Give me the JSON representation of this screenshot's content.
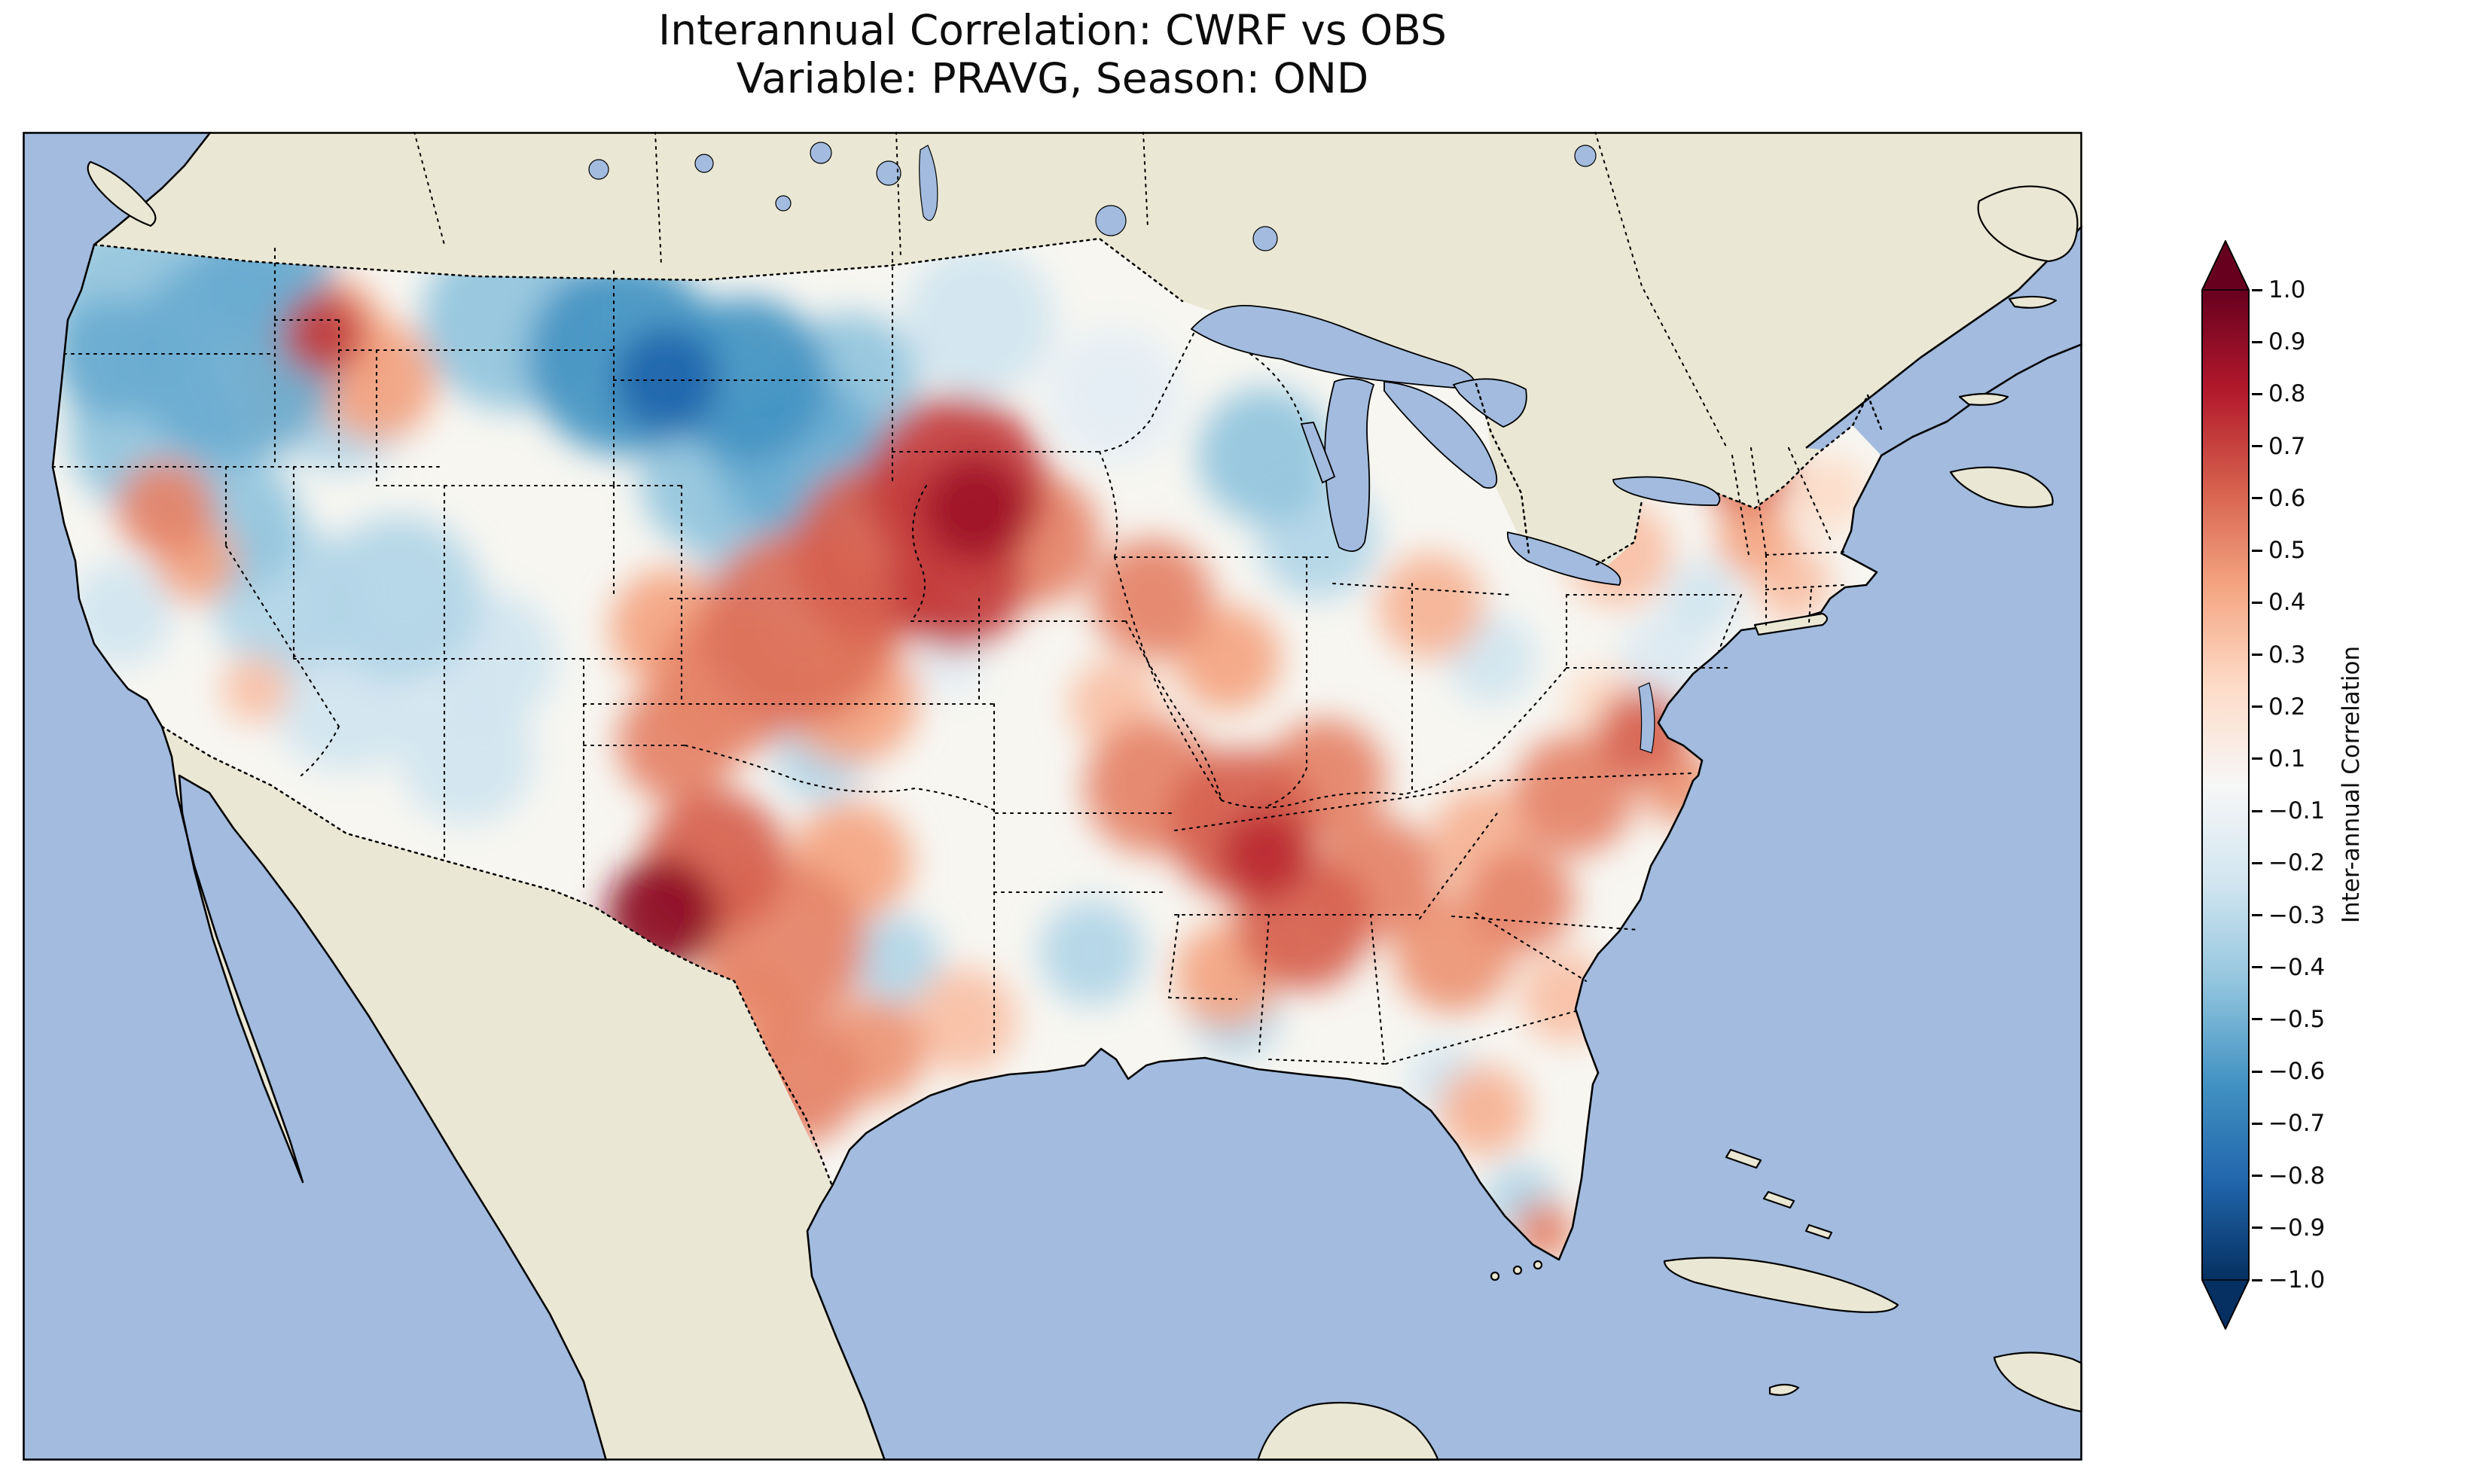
{
  "figure": {
    "title_line1": "Interannual Correlation: CWRF vs OBS",
    "title_line2": "Variable: PRAVG, Season: OND"
  },
  "colorbar": {
    "label": "Inter-annual Correlation",
    "ticks": [
      "1.0",
      "0.9",
      "0.8",
      "0.7",
      "0.6",
      "0.5",
      "0.4",
      "0.3",
      "0.2",
      "0.1",
      "−0.1",
      "−0.2",
      "−0.3",
      "−0.4",
      "−0.5",
      "−0.6",
      "−0.7",
      "−0.8",
      "−0.9",
      "−1.0"
    ],
    "extend_colors": {
      "over": "#67001f",
      "under": "#053061"
    }
  },
  "map": {
    "ocean_color": "#a2bbdf",
    "land_color": "#eae8d4",
    "field_base_color": "#f7f6f1",
    "coast_color": "#000000"
  },
  "chart_data": {
    "type": "heatmap",
    "title": "Interannual Correlation: CWRF vs OBS",
    "subtitle": "Variable: PRAVG, Season: OND",
    "variable": "PRAVG",
    "season": "OND",
    "datasets_compared": [
      "CWRF",
      "OBS"
    ],
    "region": "Contiguous United States",
    "colormap": "RdBu_r (red = positive correlation, blue = negative)",
    "value_range": [
      -1.0,
      1.0
    ],
    "level_step": 0.1,
    "colorbar_label": "Inter-annual Correlation",
    "colormap_anchors": [
      {
        "v": -1.0,
        "color": "#053061"
      },
      {
        "v": -0.8,
        "color": "#2166ac"
      },
      {
        "v": -0.6,
        "color": "#4393c3"
      },
      {
        "v": -0.4,
        "color": "#92c5de"
      },
      {
        "v": -0.2,
        "color": "#d1e5f0"
      },
      {
        "v": 0.0,
        "color": "#f7f7f7"
      },
      {
        "v": 0.2,
        "color": "#fddbc7"
      },
      {
        "v": 0.4,
        "color": "#f4a582"
      },
      {
        "v": 0.6,
        "color": "#d6604d"
      },
      {
        "v": 0.8,
        "color": "#b2182b"
      },
      {
        "v": 1.0,
        "color": "#67001f"
      }
    ],
    "regional_values": [
      {
        "region": "Pacific Northwest / northern Rockies",
        "correlation": -0.5
      },
      {
        "region": "Northern Plains (Montana–Dakotas)",
        "correlation": -0.7
      },
      {
        "region": "NW Wyoming",
        "correlation": 0.6
      },
      {
        "region": "Great Basin (Nevada–Utah)",
        "correlation": -0.3
      },
      {
        "region": "Eastern California / Sierra",
        "correlation": 0.4
      },
      {
        "region": "Central Plains (Kansas–Missouri–Iowa)",
        "correlation": 0.8
      },
      {
        "region": "Big Bend, West Texas",
        "correlation": 0.9
      },
      {
        "region": "Central and South Texas",
        "correlation": 0.5
      },
      {
        "region": "Mid-South (Arkansas–Tennessee–Alabama)",
        "correlation": 0.6
      },
      {
        "region": "Carolinas coast",
        "correlation": 0.6
      },
      {
        "region": "Upper Midwest (Wisconsin)",
        "correlation": -0.4
      },
      {
        "region": "Ohio Valley",
        "correlation": 0.4
      },
      {
        "region": "New England (Vermont–New Hampshire)",
        "correlation": 0.5
      },
      {
        "region": "Florida peninsula",
        "correlation": 0.3
      },
      {
        "region": "Gulf Coast (Louisiana–Mississippi)",
        "correlation": -0.3
      }
    ],
    "field_blobs_format": "x, y, radius, correlation value (map-local pixels)",
    "field_blobs": [
      [
        150,
        230,
        120,
        -0.4
      ],
      [
        280,
        300,
        140,
        -0.5
      ],
      [
        170,
        400,
        110,
        -0.4
      ],
      [
        320,
        180,
        90,
        -0.5
      ],
      [
        420,
        350,
        100,
        -0.3
      ],
      [
        120,
        300,
        80,
        -0.5
      ],
      [
        390,
        280,
        95,
        0.4
      ],
      [
        400,
        268,
        55,
        0.7
      ],
      [
        470,
        330,
        80,
        0.4
      ],
      [
        345,
        365,
        50,
        0.3
      ],
      [
        650,
        250,
        120,
        -0.4
      ],
      [
        800,
        300,
        130,
        -0.6
      ],
      [
        855,
        330,
        70,
        -0.8
      ],
      [
        960,
        330,
        110,
        -0.6
      ],
      [
        1030,
        430,
        110,
        -0.5
      ],
      [
        920,
        460,
        100,
        -0.4
      ],
      [
        1100,
        330,
        90,
        -0.4
      ],
      [
        990,
        550,
        95,
        -0.3
      ],
      [
        1270,
        250,
        100,
        -0.2
      ],
      [
        1650,
        430,
        90,
        -0.4
      ],
      [
        1720,
        540,
        80,
        -0.3
      ],
      [
        1450,
        350,
        90,
        -0.1
      ],
      [
        280,
        520,
        90,
        -0.4
      ],
      [
        350,
        620,
        100,
        -0.3
      ],
      [
        500,
        620,
        110,
        -0.3
      ],
      [
        430,
        750,
        100,
        -0.2
      ],
      [
        590,
        830,
        90,
        -0.2
      ],
      [
        620,
        700,
        90,
        -0.2
      ],
      [
        190,
        500,
        65,
        0.5
      ],
      [
        230,
        570,
        55,
        0.4
      ],
      [
        130,
        640,
        70,
        -0.2
      ],
      [
        310,
        740,
        45,
        0.3
      ],
      [
        1240,
        470,
        120,
        0.7
      ],
      [
        1265,
        500,
        70,
        0.85
      ],
      [
        1140,
        560,
        120,
        0.6
      ],
      [
        1030,
        660,
        130,
        0.55
      ],
      [
        940,
        730,
        100,
        0.5
      ],
      [
        1240,
        600,
        90,
        0.7
      ],
      [
        1340,
        540,
        90,
        0.5
      ],
      [
        860,
        660,
        80,
        0.4
      ],
      [
        1100,
        750,
        90,
        0.4
      ],
      [
        870,
        810,
        80,
        0.5
      ],
      [
        1060,
        830,
        60,
        -0.3
      ],
      [
        1230,
        700,
        50,
        -0.1
      ],
      [
        1500,
        620,
        80,
        0.5
      ],
      [
        1600,
        700,
        70,
        0.4
      ],
      [
        1450,
        760,
        60,
        0.3
      ],
      [
        1870,
        630,
        70,
        0.35
      ],
      [
        1950,
        700,
        60,
        -0.2
      ],
      [
        1500,
        870,
        90,
        0.5
      ],
      [
        1620,
        920,
        100,
        0.6
      ],
      [
        1650,
        960,
        60,
        0.75
      ],
      [
        1730,
        860,
        80,
        0.5
      ],
      [
        1700,
        1050,
        90,
        0.6
      ],
      [
        1600,
        1120,
        70,
        0.4
      ],
      [
        1800,
        990,
        80,
        0.5
      ],
      [
        850,
        1040,
        75,
        0.9
      ],
      [
        920,
        970,
        95,
        0.6
      ],
      [
        1010,
        1080,
        110,
        0.5
      ],
      [
        1100,
        970,
        80,
        0.4
      ],
      [
        1030,
        1260,
        85,
        0.5
      ],
      [
        1130,
        1220,
        70,
        0.45
      ],
      [
        960,
        1180,
        80,
        0.4
      ],
      [
        1160,
        1100,
        60,
        -0.3
      ],
      [
        1250,
        1180,
        70,
        0.3
      ],
      [
        1420,
        1090,
        70,
        -0.3
      ],
      [
        1610,
        1170,
        60,
        -0.3
      ],
      [
        1900,
        1090,
        80,
        0.45
      ],
      [
        1990,
        1020,
        70,
        0.5
      ],
      [
        2060,
        880,
        80,
        0.5
      ],
      [
        2150,
        800,
        60,
        0.6
      ],
      [
        1940,
        940,
        70,
        0.35
      ],
      [
        2050,
        1150,
        60,
        0.3
      ],
      [
        1940,
        1300,
        60,
        0.35
      ],
      [
        1990,
        1420,
        50,
        -0.3
      ],
      [
        2020,
        1460,
        40,
        0.5
      ],
      [
        1890,
        1260,
        50,
        -0.2
      ],
      [
        2180,
        700,
        60,
        -0.15
      ],
      [
        2120,
        560,
        70,
        0.3
      ],
      [
        2290,
        450,
        60,
        0.55
      ],
      [
        2300,
        540,
        50,
        0.4
      ],
      [
        2350,
        600,
        50,
        0.3
      ],
      [
        2230,
        620,
        50,
        -0.2
      ],
      [
        2400,
        480,
        50,
        0.2
      ],
      [
        2100,
        760,
        50,
        0.2
      ],
      [
        2200,
        870,
        50,
        0.45
      ]
    ]
  }
}
